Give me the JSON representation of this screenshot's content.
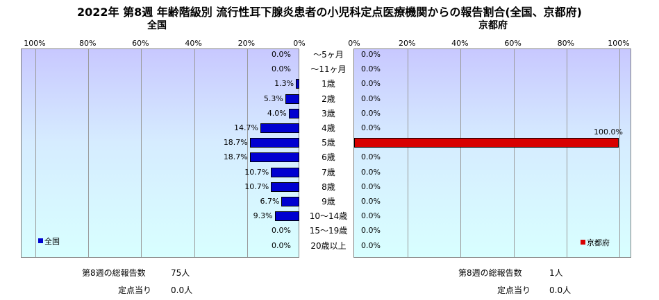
{
  "title": "2022年 第8週 年齢階級別 流行性耳下腺炎患者の小児科定点医療機関からの報告割合(全国、京都府)",
  "chart_data": {
    "type": "bar",
    "categories": [
      "～5ヶ月",
      "～11ヶ月",
      "1歳",
      "2歳",
      "3歳",
      "4歳",
      "5歳",
      "6歳",
      "7歳",
      "8歳",
      "9歳",
      "10～14歳",
      "15～19歳",
      "20歳以上"
    ],
    "xlim": [
      0,
      100
    ],
    "panels": [
      {
        "subtitle": "全国",
        "legend": "全国",
        "color": "#0000d0",
        "direction": "left",
        "ticks": [
          "100%",
          "80%",
          "60%",
          "40%",
          "20%",
          "0%"
        ],
        "values": [
          0.0,
          0.0,
          1.3,
          5.3,
          4.0,
          14.7,
          18.7,
          18.7,
          10.7,
          10.7,
          6.7,
          9.3,
          0.0,
          0.0
        ],
        "value_labels": [
          "0.0%",
          "0.0%",
          "1.3%",
          "5.3%",
          "4.0%",
          "14.7%",
          "18.7%",
          "18.7%",
          "10.7%",
          "10.7%",
          "6.7%",
          "9.3%",
          "0.0%",
          "0.0%"
        ]
      },
      {
        "subtitle": "京都府",
        "legend": "京都府",
        "color": "#d80000",
        "direction": "right",
        "ticks": [
          "0%",
          "20%",
          "40%",
          "60%",
          "80%",
          "100%"
        ],
        "values": [
          0.0,
          0.0,
          0.0,
          0.0,
          0.0,
          0.0,
          100.0,
          0.0,
          0.0,
          0.0,
          0.0,
          0.0,
          0.0,
          0.0
        ],
        "value_labels": [
          "0.0%",
          "0.0%",
          "0.0%",
          "0.0%",
          "0.0%",
          "0.0%",
          "100.0%",
          "0.0%",
          "0.0%",
          "0.0%",
          "0.0%",
          "0.0%",
          "0.0%",
          "0.0%"
        ]
      }
    ]
  },
  "footer": {
    "national": {
      "total_label": "第8週の総報告数",
      "total_value": "75人",
      "per_site_label": "定点当り",
      "per_site_value": "0.0人"
    },
    "kyoto": {
      "total_label": "第8週の総報告数",
      "total_value": "1人",
      "per_site_label": "定点当り",
      "per_site_value": "0.0人"
    }
  }
}
